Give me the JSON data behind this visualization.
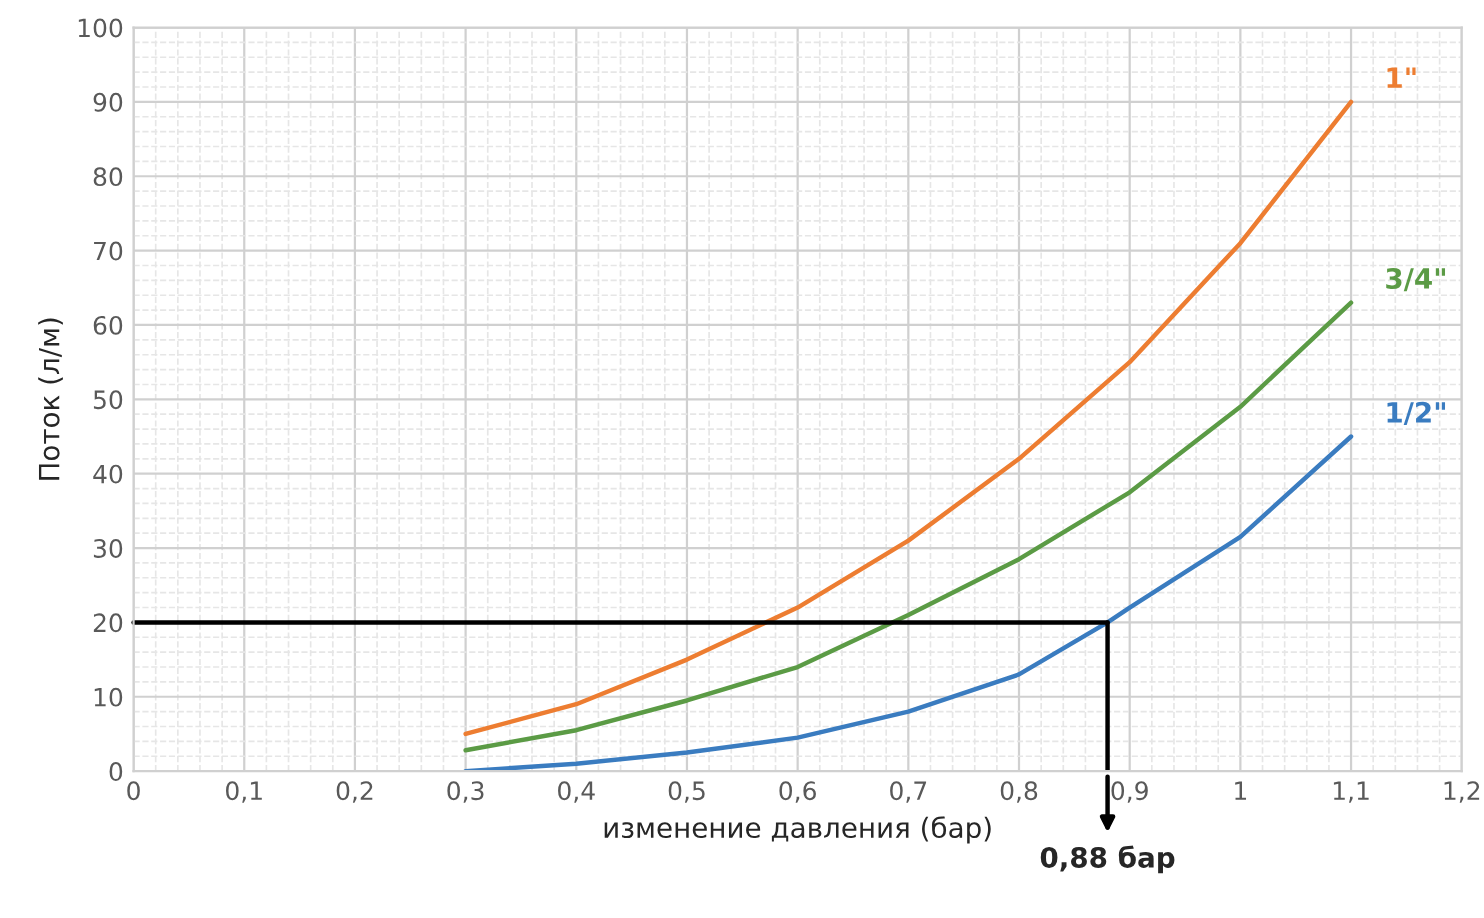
{
  "chart_data": {
    "type": "line",
    "xlabel": "изменение давления (бар)",
    "ylabel": "Поток (л/м)",
    "xlim": [
      0,
      1.2
    ],
    "ylim": [
      0,
      100
    ],
    "xticks": [
      0,
      {
        "value": 0.1,
        "label": "0,1"
      },
      {
        "value": 0.2,
        "label": "0,2"
      },
      {
        "value": 0.3,
        "label": "0,3"
      },
      {
        "value": 0.4,
        "label": "0,4"
      },
      {
        "value": 0.5,
        "label": "0,5"
      },
      {
        "value": 0.6,
        "label": "0,6"
      },
      {
        "value": 0.7,
        "label": "0,7"
      },
      {
        "value": 0.8,
        "label": "0,8"
      },
      {
        "value": 0.9,
        "label": "0,9"
      },
      1,
      {
        "value": 1.1,
        "label": "1,1"
      },
      {
        "value": 1.2,
        "label": "1,2"
      }
    ],
    "yticks": [
      0,
      10,
      20,
      30,
      40,
      50,
      60,
      70,
      80,
      90,
      100
    ],
    "grid": true,
    "marker": "none",
    "line_style": "solid",
    "x": [
      0.3,
      0.4,
      0.5,
      0.6,
      0.7,
      0.8,
      0.9,
      1.0,
      1.1
    ],
    "series": [
      {
        "name": "1\"",
        "color": "#ed7d31",
        "values": [
          5,
          9,
          15,
          22,
          31,
          42,
          55,
          71,
          90
        ]
      },
      {
        "name": "3/4\"",
        "color": "#5b9b45",
        "values": [
          2.8,
          5.5,
          9.5,
          14,
          21,
          28.5,
          37.5,
          49,
          63
        ]
      },
      {
        "name": "1/2\"",
        "color": "#3a7cc0",
        "x": [
          0.3,
          0.4,
          0.5,
          0.6,
          0.7,
          0.8,
          0.88,
          0.9,
          1.0,
          1.1
        ],
        "values": [
          0,
          1,
          2.5,
          4.5,
          8,
          13,
          20,
          22,
          31.5,
          45
        ]
      }
    ],
    "ref_lines": [
      {
        "axis": "y",
        "value": 20,
        "color": "#000000"
      },
      {
        "axis": "x",
        "value": 0.88,
        "label": "0,88 бар",
        "color": "#000000"
      }
    ]
  }
}
